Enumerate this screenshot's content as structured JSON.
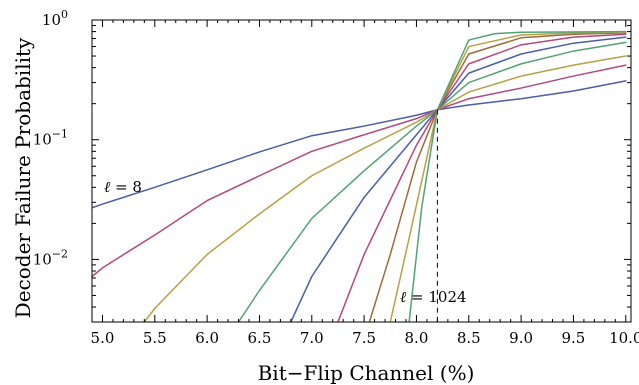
{
  "chart_data": {
    "type": "line",
    "xlabel": "Bit−Flip Channel (%)",
    "ylabel": "Decoder Failure Probability",
    "xlim": [
      4.9,
      10.05
    ],
    "ylim": [
      0.003,
      1.0
    ],
    "y_scale": "log",
    "x_ticks": [
      "5.0",
      "5.5",
      "6.0",
      "6.5",
      "7.0",
      "7.5",
      "8.0",
      "8.5",
      "9.0",
      "9.5",
      "10.0"
    ],
    "x_tick_values": [
      5.0,
      5.5,
      6.0,
      6.5,
      7.0,
      7.5,
      8.0,
      8.5,
      9.0,
      9.5,
      10.0
    ],
    "y_ticks": [
      {
        "value": 1.0,
        "base": "10",
        "exp": "0"
      },
      {
        "value": 0.1,
        "base": "10",
        "exp": "−1"
      },
      {
        "value": 0.01,
        "base": "10",
        "exp": "−2"
      }
    ],
    "threshold_x": 8.2,
    "annotations": {
      "small": {
        "italic": "ℓ",
        "text": " = 8"
      },
      "large": {
        "italic": "ℓ",
        "text": " = 1024"
      }
    },
    "series": [
      {
        "color": "#4a5da8",
        "points": [
          [
            4.9,
            0.027
          ],
          [
            5.0,
            0.029
          ],
          [
            5.5,
            0.04
          ],
          [
            6.0,
            0.056
          ],
          [
            6.5,
            0.079
          ],
          [
            7.0,
            0.108
          ],
          [
            7.5,
            0.13
          ],
          [
            8.0,
            0.16
          ],
          [
            8.2,
            0.178
          ],
          [
            8.5,
            0.195
          ],
          [
            9.0,
            0.22
          ],
          [
            9.5,
            0.255
          ],
          [
            10.0,
            0.31
          ]
        ]
      },
      {
        "color": "#b5477f",
        "points": [
          [
            4.9,
            0.0072
          ],
          [
            5.0,
            0.0085
          ],
          [
            5.5,
            0.016
          ],
          [
            6.0,
            0.031
          ],
          [
            6.5,
            0.05
          ],
          [
            7.0,
            0.08
          ],
          [
            7.5,
            0.11
          ],
          [
            8.0,
            0.15
          ],
          [
            8.2,
            0.178
          ],
          [
            8.5,
            0.22
          ],
          [
            9.0,
            0.27
          ],
          [
            9.5,
            0.34
          ],
          [
            10.0,
            0.42
          ]
        ]
      },
      {
        "color": "#b8a046",
        "points": [
          [
            5.4,
            0.003
          ],
          [
            5.5,
            0.0039
          ],
          [
            6.0,
            0.011
          ],
          [
            6.5,
            0.024
          ],
          [
            7.0,
            0.05
          ],
          [
            7.5,
            0.085
          ],
          [
            8.0,
            0.14
          ],
          [
            8.2,
            0.178
          ],
          [
            8.5,
            0.25
          ],
          [
            9.0,
            0.34
          ],
          [
            9.5,
            0.42
          ],
          [
            10.0,
            0.5
          ]
        ]
      },
      {
        "color": "#52a373",
        "points": [
          [
            6.3,
            0.003
          ],
          [
            6.5,
            0.0055
          ],
          [
            7.0,
            0.022
          ],
          [
            7.5,
            0.055
          ],
          [
            8.0,
            0.13
          ],
          [
            8.2,
            0.178
          ],
          [
            8.5,
            0.3
          ],
          [
            9.0,
            0.43
          ],
          [
            9.5,
            0.55
          ],
          [
            10.0,
            0.65
          ]
        ]
      },
      {
        "color": "#4a5da8",
        "points": [
          [
            6.8,
            0.003
          ],
          [
            7.0,
            0.0072
          ],
          [
            7.5,
            0.033
          ],
          [
            8.0,
            0.11
          ],
          [
            8.2,
            0.178
          ],
          [
            8.5,
            0.36
          ],
          [
            9.0,
            0.52
          ],
          [
            9.5,
            0.64
          ],
          [
            10.0,
            0.72
          ]
        ]
      },
      {
        "color": "#b5477f",
        "points": [
          [
            7.25,
            0.003
          ],
          [
            7.5,
            0.011
          ],
          [
            8.0,
            0.09
          ],
          [
            8.2,
            0.178
          ],
          [
            8.5,
            0.43
          ],
          [
            9.0,
            0.62
          ],
          [
            9.5,
            0.72
          ],
          [
            10.0,
            0.76
          ]
        ]
      },
      {
        "color": "#9e6a3a",
        "points": [
          [
            7.55,
            0.003
          ],
          [
            7.75,
            0.011
          ],
          [
            8.0,
            0.065
          ],
          [
            8.2,
            0.178
          ],
          [
            8.5,
            0.52
          ],
          [
            9.0,
            0.71
          ],
          [
            9.5,
            0.76
          ],
          [
            10.0,
            0.78
          ]
        ]
      },
      {
        "color": "#b8a046",
        "points": [
          [
            7.75,
            0.003
          ],
          [
            7.95,
            0.018
          ],
          [
            8.2,
            0.178
          ],
          [
            8.5,
            0.6
          ],
          [
            9.0,
            0.75
          ],
          [
            9.5,
            0.78
          ],
          [
            10.0,
            0.79
          ]
        ]
      },
      {
        "color": "#52a373",
        "points": [
          [
            7.93,
            0.003
          ],
          [
            8.05,
            0.027
          ],
          [
            8.2,
            0.178
          ],
          [
            8.5,
            0.68
          ],
          [
            8.75,
            0.77
          ],
          [
            9.0,
            0.79
          ],
          [
            10.0,
            0.8
          ]
        ]
      }
    ]
  }
}
